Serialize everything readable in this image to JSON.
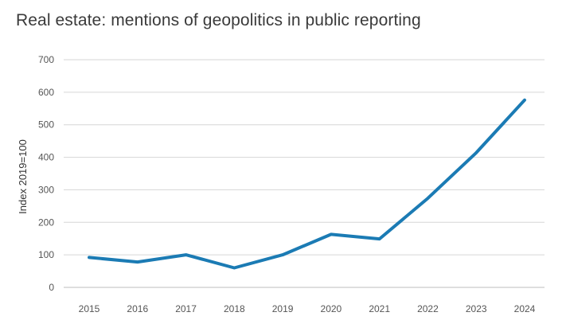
{
  "chart_data": {
    "type": "line",
    "title": "Real estate: mentions of geopolitics in public reporting",
    "xlabel": "",
    "ylabel": "Index 2019=100",
    "x": [
      "2015",
      "2016",
      "2017",
      "2018",
      "2019",
      "2020",
      "2021",
      "2022",
      "2023",
      "2024"
    ],
    "series": [
      {
        "values": [
          92,
          78,
          100,
          60,
          100,
          163,
          149,
          274,
          414,
          576
        ]
      }
    ],
    "ylim": [
      0,
      700
    ],
    "yticks": [
      "0",
      "100",
      "200",
      "300",
      "400",
      "500",
      "600",
      "700"
    ],
    "grid": true,
    "legend": "none",
    "colors": {
      "line": "#1b7bb4",
      "grid": "#d6d6d6",
      "baseline": "#bdbdbd"
    }
  }
}
